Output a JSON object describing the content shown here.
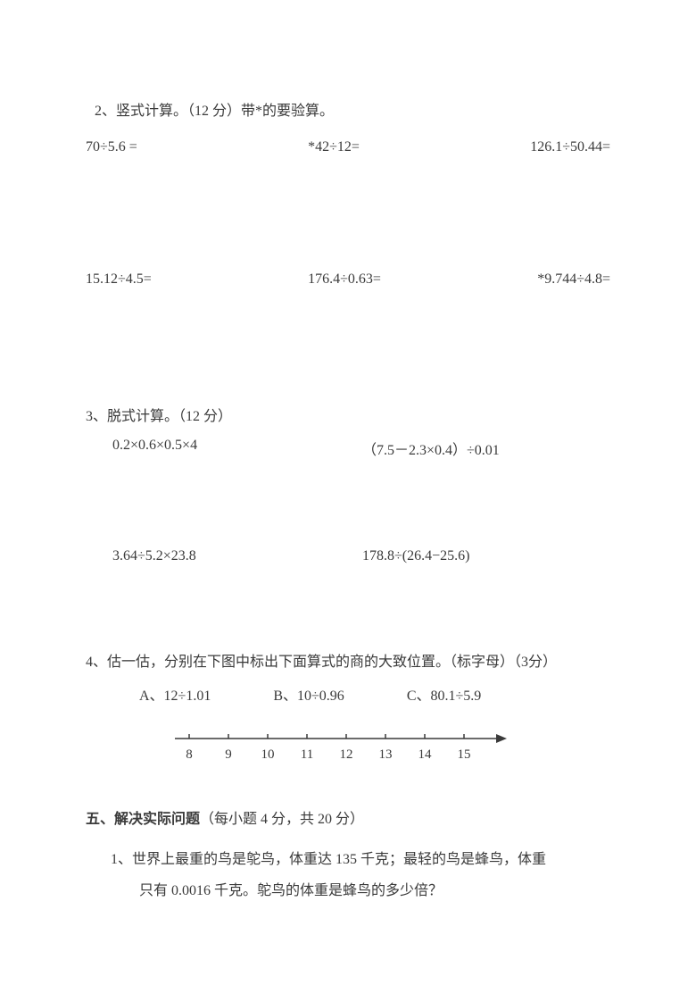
{
  "q2": {
    "title": "2、竖式计算。（12 分）带*的要验算。",
    "row1": [
      "70÷5.6 =",
      "*42÷12=",
      "126.1÷50.44="
    ],
    "row2": [
      "15.12÷4.5=",
      "176.4÷0.63=",
      "*9.744÷4.8="
    ]
  },
  "q3": {
    "title": "3、脱式计算。（12 分）",
    "row1": [
      "0.2×0.6×0.5×4",
      "（7.5－2.3×0.4）÷0.01"
    ],
    "row2": [
      "3.64÷5.2×23.8",
      "178.8÷(26.4−25.6)"
    ]
  },
  "q4": {
    "title": "4、估一估，分别在下图中标出下面算式的商的大致位置。（标字母）（3分）",
    "optA": "A、12÷1.01",
    "optB": "B、10÷0.96",
    "optC": "C、80.1÷5.9",
    "ticks": [
      "8",
      "9",
      "10",
      "11",
      "12",
      "13",
      "14",
      "15"
    ],
    "tick_start_x": 30,
    "tick_spacing": 44,
    "line_color": "#3a3a3a",
    "tick_font_size": 15
  },
  "section5": {
    "heading_bold": "五、解决实际问题",
    "heading_rest": "（每小题 4 分，共 20 分）",
    "q1_line1": "1、世界上最重的鸟是鸵鸟，体重达 135 千克；最轻的鸟是蜂鸟，体重",
    "q1_line2": "只有 0.0016 千克。鸵鸟的体重是蜂鸟的多少倍？"
  }
}
